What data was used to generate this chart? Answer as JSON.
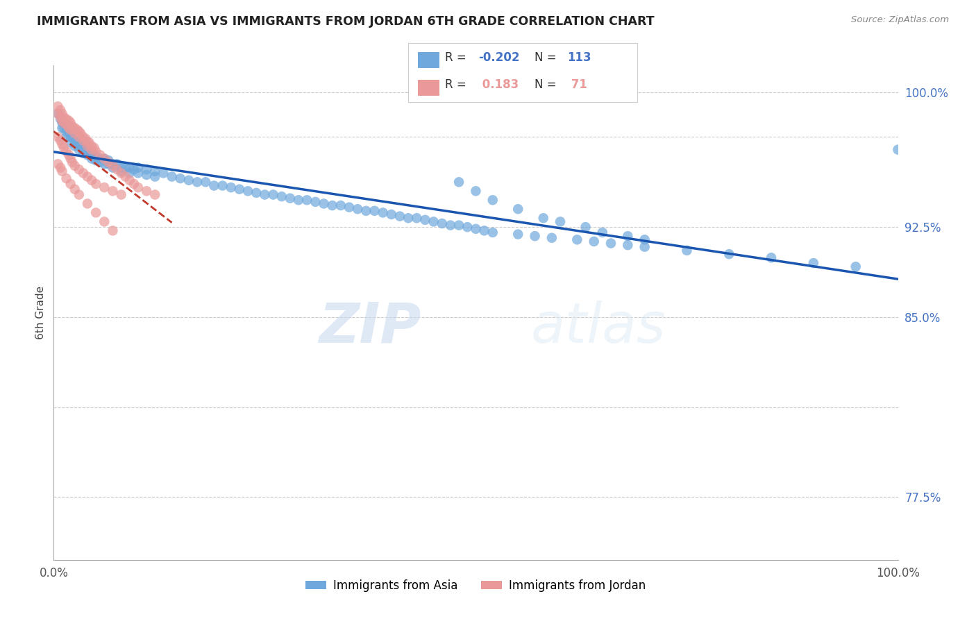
{
  "title": "IMMIGRANTS FROM ASIA VS IMMIGRANTS FROM JORDAN 6TH GRADE CORRELATION CHART",
  "source": "Source: ZipAtlas.com",
  "ylabel": "6th Grade",
  "x_range": [
    0.0,
    1.0
  ],
  "y_range": [
    0.74,
    1.015
  ],
  "color_asia": "#6fa8dc",
  "color_jordan": "#ea9999",
  "trendline_asia_color": "#1a56b0",
  "trendline_jordan_color": "#c0392b",
  "legend_r_asia": "-0.202",
  "legend_n_asia": "113",
  "legend_r_jordan": "0.183",
  "legend_n_jordan": "71",
  "watermark_zip": "ZIP",
  "watermark_atlas": "atlas",
  "asia_x": [
    0.005,
    0.008,
    0.01,
    0.01,
    0.012,
    0.015,
    0.015,
    0.018,
    0.02,
    0.02,
    0.022,
    0.025,
    0.025,
    0.028,
    0.03,
    0.03,
    0.032,
    0.035,
    0.035,
    0.038,
    0.04,
    0.04,
    0.042,
    0.045,
    0.045,
    0.048,
    0.05,
    0.05,
    0.055,
    0.055,
    0.06,
    0.06,
    0.065,
    0.065,
    0.07,
    0.07,
    0.075,
    0.08,
    0.08,
    0.085,
    0.09,
    0.09,
    0.095,
    0.1,
    0.1,
    0.11,
    0.11,
    0.12,
    0.12,
    0.13,
    0.14,
    0.15,
    0.16,
    0.17,
    0.18,
    0.19,
    0.2,
    0.21,
    0.22,
    0.23,
    0.24,
    0.25,
    0.26,
    0.27,
    0.28,
    0.29,
    0.3,
    0.31,
    0.32,
    0.33,
    0.34,
    0.35,
    0.36,
    0.37,
    0.38,
    0.39,
    0.4,
    0.41,
    0.42,
    0.43,
    0.44,
    0.45,
    0.46,
    0.47,
    0.48,
    0.49,
    0.5,
    0.51,
    0.52,
    0.55,
    0.57,
    0.59,
    0.62,
    0.64,
    0.66,
    0.68,
    0.7,
    0.75,
    0.8,
    0.85,
    0.9,
    0.95,
    1.0,
    0.48,
    0.5,
    0.52,
    0.55,
    0.58,
    0.6,
    0.63,
    0.65,
    0.68,
    0.7
  ],
  "asia_y": [
    0.988,
    0.985,
    0.983,
    0.98,
    0.98,
    0.978,
    0.975,
    0.978,
    0.975,
    0.972,
    0.975,
    0.973,
    0.97,
    0.972,
    0.97,
    0.968,
    0.97,
    0.968,
    0.966,
    0.968,
    0.967,
    0.965,
    0.966,
    0.965,
    0.963,
    0.965,
    0.964,
    0.962,
    0.963,
    0.961,
    0.963,
    0.96,
    0.962,
    0.96,
    0.96,
    0.958,
    0.96,
    0.958,
    0.956,
    0.958,
    0.958,
    0.955,
    0.957,
    0.958,
    0.955,
    0.957,
    0.954,
    0.956,
    0.953,
    0.955,
    0.953,
    0.952,
    0.951,
    0.95,
    0.95,
    0.948,
    0.948,
    0.947,
    0.946,
    0.945,
    0.944,
    0.943,
    0.943,
    0.942,
    0.941,
    0.94,
    0.94,
    0.939,
    0.938,
    0.937,
    0.937,
    0.936,
    0.935,
    0.934,
    0.934,
    0.933,
    0.932,
    0.931,
    0.93,
    0.93,
    0.929,
    0.928,
    0.927,
    0.926,
    0.926,
    0.925,
    0.924,
    0.923,
    0.922,
    0.921,
    0.92,
    0.919,
    0.918,
    0.917,
    0.916,
    0.915,
    0.914,
    0.912,
    0.91,
    0.908,
    0.905,
    0.903,
    0.968,
    0.95,
    0.945,
    0.94,
    0.935,
    0.93,
    0.928,
    0.925,
    0.922,
    0.92,
    0.918
  ],
  "jordan_x": [
    0.005,
    0.005,
    0.008,
    0.008,
    0.01,
    0.01,
    0.012,
    0.012,
    0.015,
    0.015,
    0.018,
    0.018,
    0.02,
    0.02,
    0.022,
    0.025,
    0.025,
    0.028,
    0.03,
    0.03,
    0.032,
    0.035,
    0.035,
    0.038,
    0.04,
    0.04,
    0.042,
    0.045,
    0.045,
    0.048,
    0.05,
    0.055,
    0.06,
    0.065,
    0.07,
    0.075,
    0.08,
    0.085,
    0.09,
    0.095,
    0.1,
    0.11,
    0.12,
    0.005,
    0.008,
    0.01,
    0.012,
    0.015,
    0.018,
    0.02,
    0.022,
    0.025,
    0.03,
    0.035,
    0.04,
    0.045,
    0.05,
    0.06,
    0.07,
    0.08,
    0.005,
    0.008,
    0.01,
    0.015,
    0.02,
    0.025,
    0.03,
    0.04,
    0.05,
    0.06,
    0.07
  ],
  "jordan_y": [
    0.992,
    0.988,
    0.99,
    0.986,
    0.988,
    0.984,
    0.986,
    0.983,
    0.985,
    0.982,
    0.984,
    0.98,
    0.983,
    0.979,
    0.981,
    0.98,
    0.977,
    0.979,
    0.978,
    0.975,
    0.977,
    0.975,
    0.973,
    0.974,
    0.972,
    0.97,
    0.972,
    0.97,
    0.968,
    0.969,
    0.967,
    0.965,
    0.963,
    0.961,
    0.959,
    0.957,
    0.955,
    0.953,
    0.951,
    0.949,
    0.947,
    0.945,
    0.943,
    0.975,
    0.973,
    0.971,
    0.969,
    0.967,
    0.965,
    0.963,
    0.961,
    0.959,
    0.957,
    0.955,
    0.953,
    0.951,
    0.949,
    0.947,
    0.945,
    0.943,
    0.96,
    0.958,
    0.956,
    0.952,
    0.949,
    0.946,
    0.943,
    0.938,
    0.933,
    0.928,
    0.923
  ]
}
